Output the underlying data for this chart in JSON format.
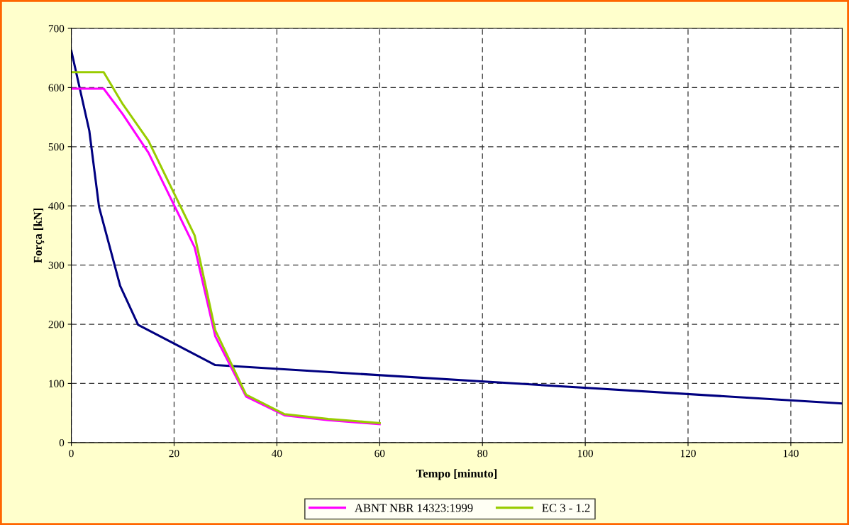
{
  "chart_data": {
    "type": "line",
    "xlabel": "Tempo [minuto]",
    "ylabel": "Força [kN]",
    "xlim": [
      0,
      150
    ],
    "xticks": [
      0,
      20,
      40,
      60,
      80,
      100,
      120,
      140
    ],
    "ylim": [
      0,
      700
    ],
    "yticks": [
      0,
      100,
      200,
      300,
      400,
      500,
      600,
      700
    ],
    "grid": true,
    "legend": "bottom",
    "marker": "none",
    "line_style": "solid",
    "series": [
      {
        "color": "#000080",
        "x": [
          0,
          3.5,
          5.4,
          7.5,
          9.5,
          13,
          28,
          150
        ],
        "values": [
          662,
          527,
          398,
          330,
          265,
          199,
          131,
          66
        ]
      },
      {
        "name": "ABNT NBR 14323:1999",
        "color": "#ff00ff",
        "x": [
          0,
          6.3,
          10,
          15,
          24,
          28,
          34,
          41.5,
          50,
          60
        ],
        "values": [
          598,
          598,
          555,
          490,
          330,
          180,
          78,
          46,
          38,
          31
        ]
      },
      {
        "name": "EC 3 - 1.2",
        "color": "#99cc00",
        "x": [
          0,
          6.3,
          10,
          15,
          24,
          28,
          34,
          41.5,
          50,
          60
        ],
        "values": [
          626,
          626,
          572,
          510,
          350,
          190,
          81,
          48,
          40,
          33
        ]
      }
    ]
  }
}
